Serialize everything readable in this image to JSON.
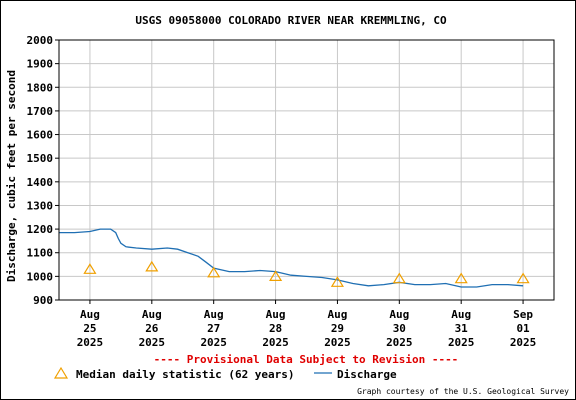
{
  "colors": {
    "discharge_line": "#1f6fb3",
    "median_marker": "#f0a000",
    "provisional_text": "#e00000",
    "grid": "#c8c8c8",
    "axis": "#000000"
  },
  "chart_data": {
    "type": "line",
    "title": "USGS 09058000 COLORADO RIVER NEAR KREMMLING, CO",
    "ylabel": "Discharge, cubic feet per second",
    "xlabel": "",
    "ylim": [
      900,
      2000
    ],
    "yticks": [
      900,
      1000,
      1100,
      1200,
      1300,
      1400,
      1500,
      1600,
      1700,
      1800,
      1900,
      2000
    ],
    "grid": true,
    "xlim": [
      "2025-08-24T12:00",
      "2025-09-01T12:00"
    ],
    "xticks": [
      {
        "date": "2025-08-25",
        "label": [
          "Aug",
          "25",
          "2025"
        ]
      },
      {
        "date": "2025-08-26",
        "label": [
          "Aug",
          "26",
          "2025"
        ]
      },
      {
        "date": "2025-08-27",
        "label": [
          "Aug",
          "27",
          "2025"
        ]
      },
      {
        "date": "2025-08-28",
        "label": [
          "Aug",
          "28",
          "2025"
        ]
      },
      {
        "date": "2025-08-29",
        "label": [
          "Aug",
          "29",
          "2025"
        ]
      },
      {
        "date": "2025-08-30",
        "label": [
          "Aug",
          "30",
          "2025"
        ]
      },
      {
        "date": "2025-08-31",
        "label": [
          "Aug",
          "31",
          "2025"
        ]
      },
      {
        "date": "2025-09-01",
        "label": [
          "Sep",
          "01",
          "2025"
        ]
      }
    ],
    "series": [
      {
        "name": "Discharge",
        "type": "line",
        "points": [
          [
            "2025-08-24T12:00",
            1185
          ],
          [
            "2025-08-24T18:00",
            1185
          ],
          [
            "2025-08-25T00:00",
            1190
          ],
          [
            "2025-08-25T04:00",
            1200
          ],
          [
            "2025-08-25T08:00",
            1200
          ],
          [
            "2025-08-25T10:00",
            1185
          ],
          [
            "2025-08-25T11:00",
            1160
          ],
          [
            "2025-08-25T12:00",
            1140
          ],
          [
            "2025-08-25T14:00",
            1125
          ],
          [
            "2025-08-25T18:00",
            1120
          ],
          [
            "2025-08-26T00:00",
            1115
          ],
          [
            "2025-08-26T06:00",
            1120
          ],
          [
            "2025-08-26T10:00",
            1115
          ],
          [
            "2025-08-26T14:00",
            1100
          ],
          [
            "2025-08-26T18:00",
            1085
          ],
          [
            "2025-08-26T21:00",
            1060
          ],
          [
            "2025-08-27T00:00",
            1035
          ],
          [
            "2025-08-27T06:00",
            1020
          ],
          [
            "2025-08-27T12:00",
            1020
          ],
          [
            "2025-08-27T18:00",
            1025
          ],
          [
            "2025-08-28T00:00",
            1020
          ],
          [
            "2025-08-28T06:00",
            1005
          ],
          [
            "2025-08-28T12:00",
            1000
          ],
          [
            "2025-08-28T18:00",
            995
          ],
          [
            "2025-08-29T00:00",
            985
          ],
          [
            "2025-08-29T06:00",
            970
          ],
          [
            "2025-08-29T12:00",
            960
          ],
          [
            "2025-08-29T18:00",
            965
          ],
          [
            "2025-08-30T00:00",
            975
          ],
          [
            "2025-08-30T06:00",
            965
          ],
          [
            "2025-08-30T12:00",
            965
          ],
          [
            "2025-08-30T18:00",
            970
          ],
          [
            "2025-08-31T00:00",
            955
          ],
          [
            "2025-08-31T06:00",
            955
          ],
          [
            "2025-08-31T12:00",
            965
          ],
          [
            "2025-08-31T18:00",
            965
          ],
          [
            "2025-09-01T00:00",
            960
          ]
        ]
      },
      {
        "name": "Median daily statistic (62 years)",
        "type": "scatter",
        "marker": "triangle",
        "points": [
          [
            "2025-08-25T00:00",
            1030
          ],
          [
            "2025-08-26T00:00",
            1040
          ],
          [
            "2025-08-27T00:00",
            1015
          ],
          [
            "2025-08-28T00:00",
            1000
          ],
          [
            "2025-08-29T00:00",
            975
          ],
          [
            "2025-08-30T00:00",
            990
          ],
          [
            "2025-08-31T00:00",
            990
          ],
          [
            "2025-09-01T00:00",
            990
          ]
        ]
      }
    ],
    "provisional_note": "---- Provisional Data Subject to Revision ----",
    "legend": [
      {
        "label": "Median daily statistic (62 years)",
        "marker": "triangle"
      },
      {
        "label": "Discharge",
        "marker": "line"
      }
    ],
    "credit": "Graph courtesy of the U.S. Geological Survey"
  }
}
